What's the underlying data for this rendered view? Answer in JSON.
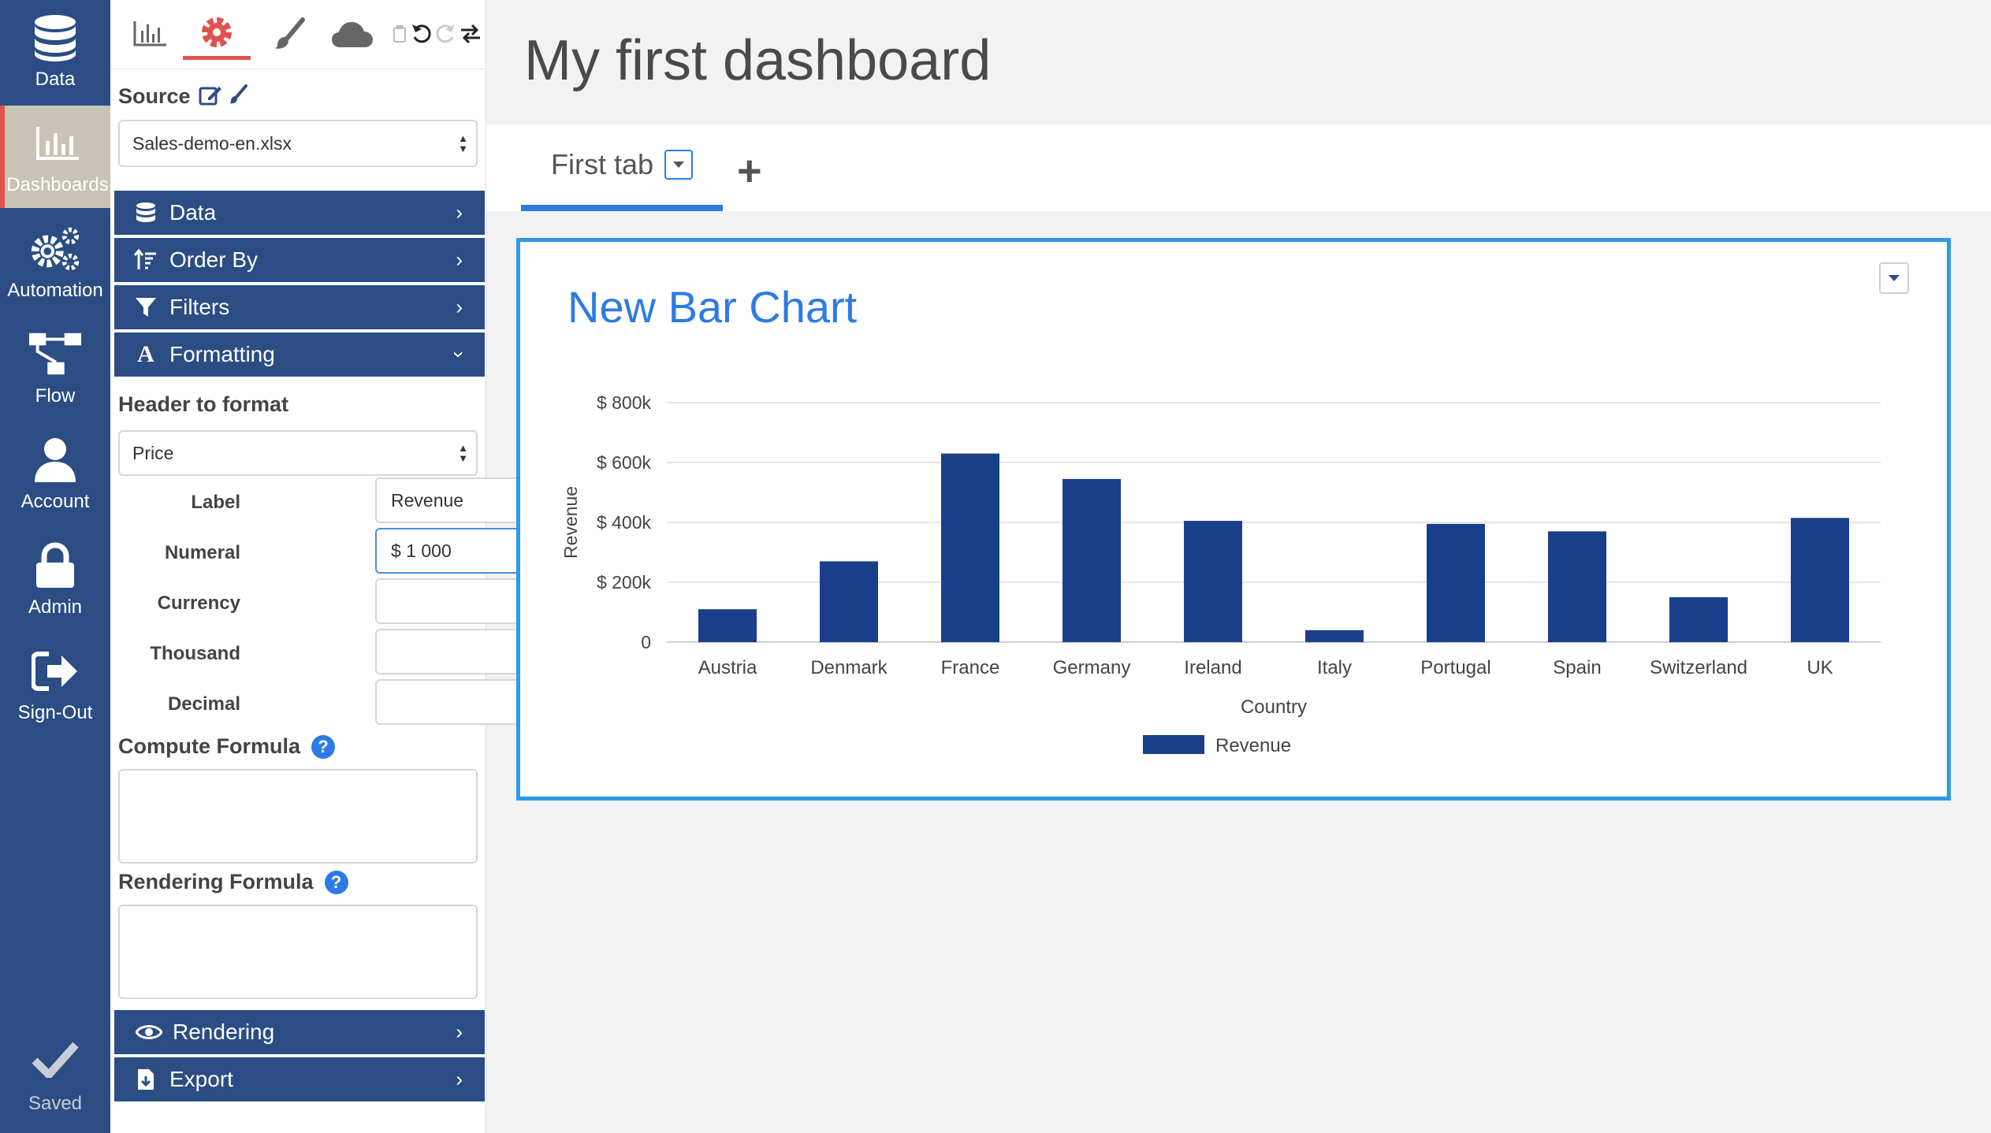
{
  "nav": {
    "items": [
      {
        "label": "Data",
        "icon": "database-icon"
      },
      {
        "label": "Dashboards",
        "icon": "bar-chart-icon"
      },
      {
        "label": "Automation",
        "icon": "gears-icon"
      },
      {
        "label": "Flow",
        "icon": "flow-icon"
      },
      {
        "label": "Account",
        "icon": "user-icon"
      },
      {
        "label": "Admin",
        "icon": "lock-icon"
      },
      {
        "label": "Sign-Out",
        "icon": "sign-out-icon"
      }
    ],
    "saved_label": "Saved"
  },
  "panel": {
    "source_label": "Source",
    "source_value": "Sales-demo-en.xlsx",
    "accordions": {
      "data": "Data",
      "order_by": "Order By",
      "filters": "Filters",
      "formatting": "Formatting",
      "rendering": "Rendering",
      "export": "Export"
    },
    "header_to_format_label": "Header to format",
    "header_to_format_value": "Price",
    "label_label": "Label",
    "label_value": "Revenue",
    "numeral_label": "Numeral",
    "numeral_value": "$ 1 000",
    "currency_label": "Currency",
    "currency_value": "",
    "thousand_label": "Thousand",
    "thousand_value": "",
    "decimal_label": "Decimal",
    "decimal_value": "",
    "compute_formula_label": "Compute Formula",
    "rendering_formula_label": "Rendering Formula"
  },
  "main": {
    "dashboard_title": "My first dashboard",
    "tab_label": "First tab",
    "add_tab": "+",
    "widget_title": "New Bar Chart"
  },
  "colors": {
    "nav_bg": "#2b4d83",
    "accent": "#2c7be5",
    "bar": "#1a3f8a",
    "active_marker": "#e0534f"
  },
  "chart_data": {
    "type": "bar",
    "title": "New Bar Chart",
    "xlabel": "Country",
    "ylabel": "Revenue",
    "categories": [
      "Austria",
      "Denmark",
      "France",
      "Germany",
      "Ireland",
      "Italy",
      "Portugal",
      "Spain",
      "Switzerland",
      "UK"
    ],
    "series": [
      {
        "name": "Revenue",
        "values": [
          110000,
          270000,
          630000,
          545000,
          405000,
          40000,
          395000,
          370000,
          150000,
          415000
        ]
      }
    ],
    "ylim": [
      0,
      800000
    ],
    "yticks": [
      "0",
      "$ 200k",
      "$ 400k",
      "$ 600k",
      "$ 800k"
    ],
    "grid": true,
    "legend": "bottom"
  }
}
